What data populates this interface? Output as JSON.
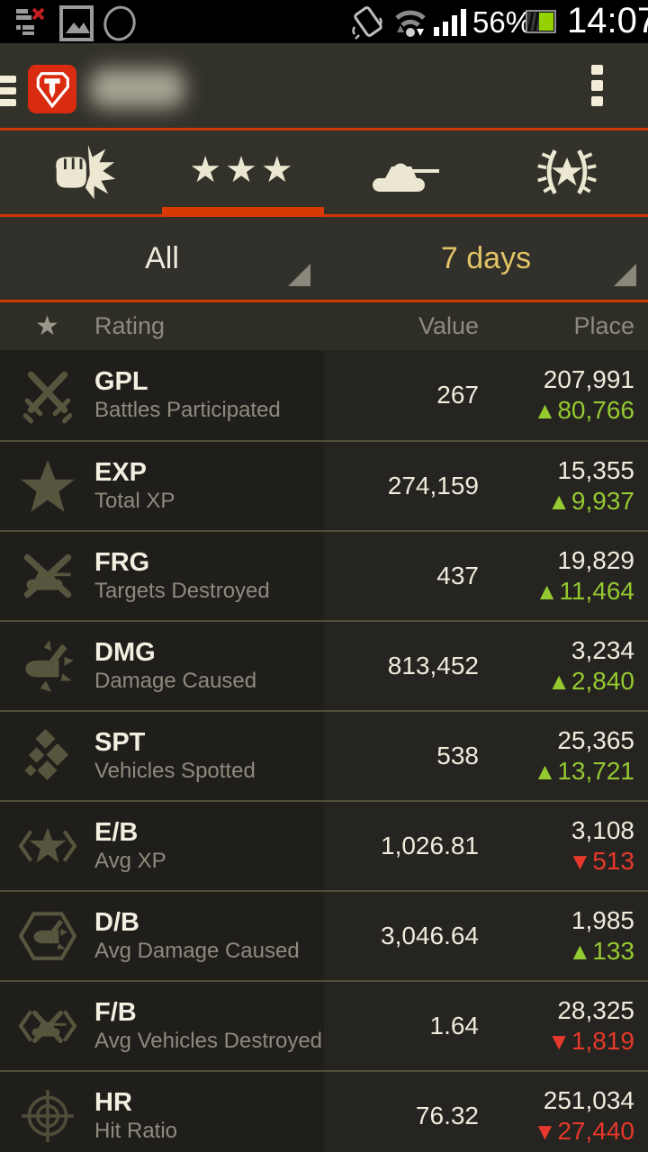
{
  "colors": {
    "accent_orange": "#d93a05",
    "gold": "#e2c366",
    "trend_up_green": "#94c930",
    "trend_down_red": "#e6392b",
    "logo_red": "#d92b10"
  },
  "status_bar": {
    "time": "14:07",
    "battery": "56%",
    "left_icons": [
      "sync-error-icon",
      "gallery-icon",
      "outline-shape-icon"
    ],
    "right_icons": [
      "vibrate-icon",
      "wifi-icon",
      "signal-strength-icon",
      "battery-icon"
    ]
  },
  "app_bar": {
    "logo_icon": "wot-logo-icon",
    "username_redacted": true,
    "menu_icon": "overflow-menu-icon",
    "drawer_icon": "drawer-handle-icon"
  },
  "tabs": [
    {
      "name": "battles",
      "icon": "fist-battle-icon",
      "active": false
    },
    {
      "name": "ratings",
      "icon": "three-stars-icon",
      "active": true
    },
    {
      "name": "vehicles",
      "icon": "tank-icon",
      "active": false
    },
    {
      "name": "achievements",
      "icon": "laurel-wreath-icon",
      "active": false
    }
  ],
  "filters": {
    "rating_type": {
      "value": "All"
    },
    "period": {
      "value": "7 days"
    }
  },
  "table": {
    "header": {
      "star_icon": "star-icon",
      "rating": "Rating",
      "value": "Value",
      "place": "Place"
    },
    "rows": [
      {
        "icon": "crossed-swords",
        "code": "GPL",
        "label": "Battles Participated",
        "value": "267",
        "place": "207,991",
        "delta": "80,766",
        "trend": "up"
      },
      {
        "icon": "star",
        "code": "EXP",
        "label": "Total XP",
        "value": "274,159",
        "place": "15,355",
        "delta": "9,937",
        "trend": "up"
      },
      {
        "icon": "destroyed-tank",
        "code": "FRG",
        "label": "Targets Destroyed",
        "value": "437",
        "place": "19,829",
        "delta": "11,464",
        "trend": "up"
      },
      {
        "icon": "shell-burst",
        "code": "DMG",
        "label": "Damage Caused",
        "value": "813,452",
        "place": "3,234",
        "delta": "2,840",
        "trend": "up"
      },
      {
        "icon": "spotted-diamonds",
        "code": "SPT",
        "label": "Vehicles Spotted",
        "value": "538",
        "place": "25,365",
        "delta": "13,721",
        "trend": "up"
      },
      {
        "icon": "avg-xp",
        "code": "E/B",
        "label": "Avg XP",
        "value": "1,026.81",
        "place": "3,108",
        "delta": "513",
        "trend": "down"
      },
      {
        "icon": "avg-damage",
        "code": "D/B",
        "label": "Avg Damage Caused",
        "value": "3,046.64",
        "place": "1,985",
        "delta": "133",
        "trend": "up"
      },
      {
        "icon": "avg-destroyed",
        "code": "F/B",
        "label": "Avg Vehicles Destroyed",
        "value": "1.64",
        "place": "28,325",
        "delta": "1,819",
        "trend": "down"
      },
      {
        "icon": "crosshair",
        "code": "HR",
        "label": "Hit Ratio",
        "value": "76.32",
        "place": "251,034",
        "delta": "27,440",
        "trend": "down"
      }
    ]
  }
}
